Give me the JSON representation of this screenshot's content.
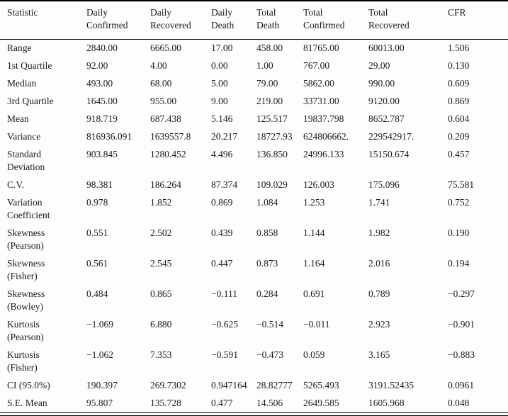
{
  "page": {
    "background": "#fdfdfd",
    "text_color": "#1b1b1b",
    "rule_color": "#000000"
  },
  "table": {
    "columns": [
      {
        "label": "Statistic"
      },
      {
        "label": "Daily\nConfirmed"
      },
      {
        "label": "Daily\nRecovered"
      },
      {
        "label": "Daily\nDeath"
      },
      {
        "label": "Total\nDeath"
      },
      {
        "label": "Total\nConfirmed"
      },
      {
        "label": "Total\nRecovered"
      },
      {
        "label": "CFR"
      }
    ],
    "rows": [
      {
        "cells": [
          "Range",
          "2840.00",
          "6665.00",
          "17.00",
          "458.00",
          "81765.00",
          "60013.00",
          "1.506"
        ]
      },
      {
        "cells": [
          "1st Quartile",
          "92.00",
          "4.00",
          "0.00",
          "1.00",
          "767.00",
          "29.00",
          "0.130"
        ]
      },
      {
        "cells": [
          "Median",
          "493.00",
          "68.00",
          "5.00",
          "79.00",
          "5862.00",
          "990.00",
          "0.609"
        ]
      },
      {
        "cells": [
          "3rd Quartile",
          "1645.00",
          "955.00",
          "9.00",
          "219.00",
          "33731.00",
          "9120.00",
          "0.869"
        ]
      },
      {
        "cells": [
          "Mean",
          "918.719",
          "687.438",
          "5.146",
          "125.517",
          "19837.798",
          "8652.787",
          "0.604"
        ]
      },
      {
        "cells": [
          "Variance",
          "816936.091",
          "1639557.8",
          "20.217",
          "18727.93",
          "624806662.",
          "229542917.",
          "0.209"
        ]
      },
      {
        "cells": [
          "Standard\nDeviation",
          "903.845",
          "1280.452",
          "4.496",
          "136.850",
          "24996.133",
          "15150.674",
          "0.457"
        ]
      },
      {
        "cells": [
          "C.V.",
          "98.381",
          "186.264",
          "87.374",
          "109.029",
          "126.003",
          "175.096",
          "75.581"
        ]
      },
      {
        "cells": [
          "Variation\nCoefficient",
          "0.978",
          "1.852",
          "0.869",
          "1.084",
          "1.253",
          "1.741",
          "0.752"
        ]
      },
      {
        "cells": [
          "Skewness\n(Pearson)",
          "0.551",
          "2.502",
          "0.439",
          "0.858",
          "1.144",
          "1.982",
          "0.190"
        ]
      },
      {
        "cells": [
          "Skewness\n(Fisher)",
          "0.561",
          "2.545",
          "0.447",
          "0.873",
          "1.164",
          "2.016",
          "0.194"
        ]
      },
      {
        "cells": [
          "Skewness\n(Bowley)",
          "0.484",
          "0.865",
          "−0.111",
          "0.284",
          "0.691",
          "0.789",
          "−0.297"
        ]
      },
      {
        "cells": [
          "Kurtosis\n(Pearson)",
          "−1.069",
          "6.880",
          "−0.625",
          "−0.514",
          "−0.011",
          "2.923",
          "−0.901"
        ]
      },
      {
        "cells": [
          "Kurtosis\n(Fisher)",
          "−1.062",
          "7.353",
          "−0.591",
          "−0.473",
          "0.059",
          "3.165",
          "−0.883"
        ]
      },
      {
        "cells": [
          "CI (95.0%)",
          "190.397",
          "269.7302",
          "0.947164",
          "28.82777",
          "5265.493",
          "3191.52435",
          "0.0961"
        ]
      },
      {
        "cells": [
          "S.E. Mean",
          "95.807",
          "135.728",
          "0.477",
          "14.506",
          "2649.585",
          "1605.968",
          "0.048"
        ]
      }
    ]
  }
}
